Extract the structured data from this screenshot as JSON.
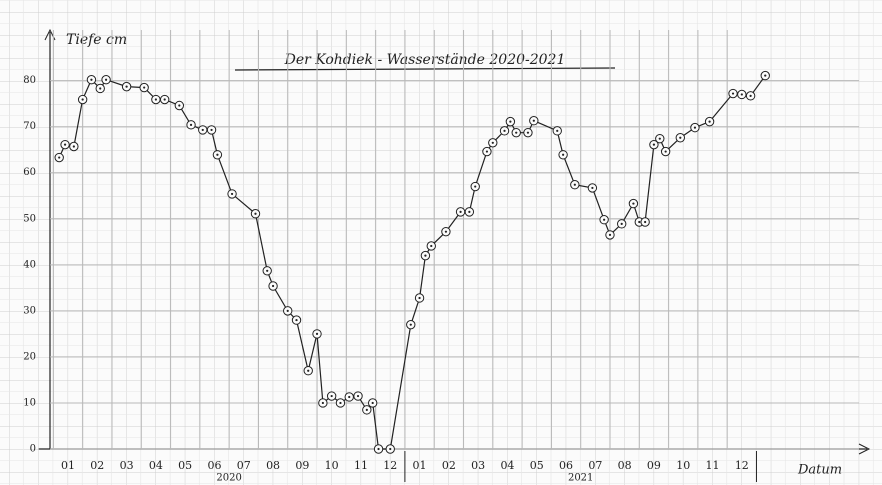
{
  "chart_data": {
    "type": "line",
    "title": "Der Kohdiek - Wasserstände 2020-2021",
    "y_label": "Tiefe cm",
    "x_label": "Datum",
    "years": [
      "2020",
      "2021"
    ],
    "color": "#222222",
    "grid": true,
    "xlim": [
      0,
      28
    ],
    "ylim": [
      0,
      91
    ],
    "yticks": [
      0,
      10,
      20,
      30,
      40,
      50,
      60,
      70,
      80
    ],
    "xticks": [
      {
        "value": 1,
        "label": "01"
      },
      {
        "value": 2,
        "label": "02"
      },
      {
        "value": 3,
        "label": "03"
      },
      {
        "value": 4,
        "label": "04"
      },
      {
        "value": 5,
        "label": "05"
      },
      {
        "value": 6,
        "label": "06"
      },
      {
        "value": 7,
        "label": "07"
      },
      {
        "value": 8,
        "label": "08"
      },
      {
        "value": 9,
        "label": "09"
      },
      {
        "value": 10,
        "label": "10"
      },
      {
        "value": 11,
        "label": "11"
      },
      {
        "value": 12,
        "label": "12"
      },
      {
        "value": 13,
        "label": "01"
      },
      {
        "value": 14,
        "label": "02"
      },
      {
        "value": 15,
        "label": "03"
      },
      {
        "value": 16,
        "label": "04"
      },
      {
        "value": 17,
        "label": "05"
      },
      {
        "value": 18,
        "label": "06"
      },
      {
        "value": 19,
        "label": "07"
      },
      {
        "value": 20,
        "label": "08"
      },
      {
        "value": 21,
        "label": "09"
      },
      {
        "value": 22,
        "label": "10"
      },
      {
        "value": 23,
        "label": "11"
      },
      {
        "value": 24,
        "label": "12"
      }
    ],
    "x": [
      0.7,
      0.9,
      1.2,
      1.5,
      1.8,
      2.1,
      2.3,
      3.0,
      3.6,
      4.0,
      4.3,
      4.8,
      5.2,
      5.6,
      5.9,
      6.1,
      6.6,
      7.4,
      7.8,
      8.0,
      8.5,
      8.8,
      9.2,
      9.5,
      9.7,
      10.0,
      10.3,
      10.6,
      10.9,
      11.2,
      11.4,
      11.6,
      12.0,
      12.7,
      13.0,
      13.2,
      13.4,
      13.9,
      14.4,
      14.7,
      14.9,
      15.3,
      15.5,
      15.9,
      16.1,
      16.3,
      16.7,
      16.9,
      17.7,
      17.9,
      18.3,
      18.9,
      19.3,
      19.5,
      19.9,
      20.3,
      20.5,
      20.7,
      21.0,
      21.2,
      21.4,
      21.9,
      22.4,
      22.9,
      23.7,
      24.0,
      24.3,
      24.8
    ],
    "values": [
      63.3,
      66.1,
      65.7,
      75.9,
      80.2,
      78.3,
      80.2,
      78.7,
      78.5,
      75.9,
      75.9,
      74.6,
      70.4,
      69.3,
      69.3,
      63.9,
      55.4,
      51.1,
      38.7,
      35.4,
      30.0,
      28.0,
      17.0,
      25.0,
      10.0,
      11.5,
      10.0,
      11.3,
      11.5,
      8.5,
      10.0,
      0,
      0,
      27.0,
      32.8,
      42.0,
      44.1,
      47.2,
      51.5,
      51.5,
      57.0,
      64.6,
      66.5,
      69.1,
      71.1,
      68.7,
      68.7,
      71.3,
      69.1,
      63.9,
      57.4,
      56.7,
      49.8,
      46.5,
      48.9,
      53.3,
      49.3,
      49.3,
      66.1,
      67.4,
      64.6,
      67.6,
      69.8,
      71.1,
      77.2,
      77.0,
      76.7,
      81.1
    ]
  }
}
